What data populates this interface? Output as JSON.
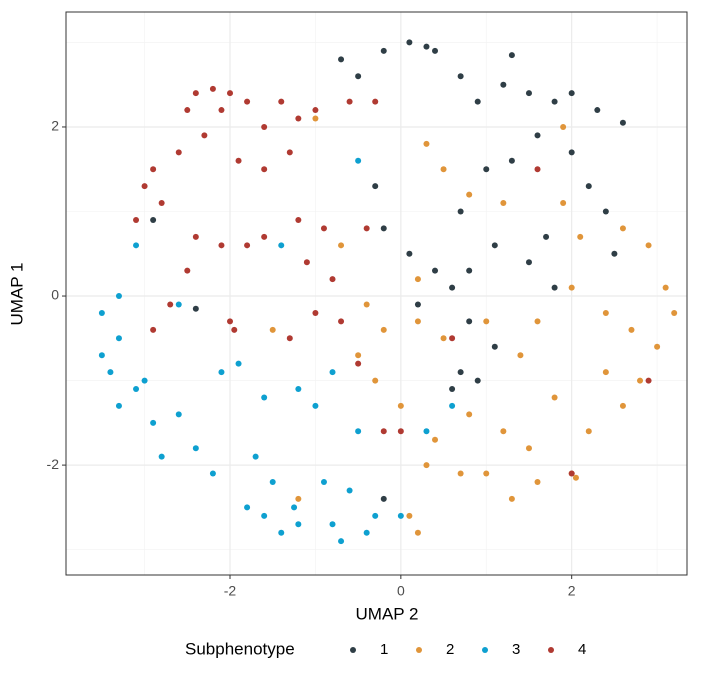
{
  "chart_data": {
    "type": "scatter",
    "xlabel": "UMAP 2",
    "ylabel": "UMAP 1",
    "legend_title": "Subphenotype",
    "legend": "bottom",
    "grid": true,
    "xlim": [
      -3.92,
      3.35
    ],
    "ylim": [
      -3.3,
      3.36
    ],
    "xticks": [
      -2,
      0,
      2
    ],
    "yticks": [
      -2,
      0,
      2
    ],
    "x_minor_ticks": [
      -3,
      -1,
      1,
      3
    ],
    "y_minor_ticks": [
      -3,
      -1,
      1,
      3
    ],
    "series": [
      {
        "name": "1",
        "color": "#2f3e46",
        "x": [
          0.1,
          0.3,
          0.4,
          -0.2,
          -0.5,
          -0.7,
          0.7,
          0.9,
          1.2,
          1.3,
          1.5,
          1.8,
          2.0,
          2.3,
          2.6,
          1.6,
          1.3,
          1.0,
          2.0,
          2.2,
          2.4,
          -0.3,
          -0.2,
          0.1,
          0.4,
          0.7,
          0.8,
          1.1,
          1.5,
          1.7,
          0.6,
          0.8,
          0.7,
          1.1,
          0.9,
          1.8,
          -2.4,
          -2.9,
          0.2,
          0.6,
          2.5,
          -0.2
        ],
        "values": [
          3.0,
          2.95,
          2.9,
          2.9,
          2.6,
          2.8,
          2.6,
          2.3,
          2.5,
          2.85,
          2.4,
          2.3,
          2.4,
          2.2,
          2.05,
          1.9,
          1.6,
          1.5,
          1.7,
          1.3,
          1.0,
          1.3,
          0.8,
          0.5,
          0.3,
          1.0,
          0.3,
          0.6,
          0.4,
          0.7,
          0.1,
          -0.3,
          -0.9,
          -0.6,
          -1.0,
          0.1,
          -0.15,
          0.9,
          -0.1,
          -1.1,
          0.5,
          -2.4
        ]
      },
      {
        "name": "2",
        "color": "#e0953a",
        "x": [
          0.5,
          0.8,
          1.2,
          1.9,
          2.1,
          2.6,
          2.9,
          3.1,
          3.2,
          2.7,
          2.4,
          2.0,
          1.6,
          1.4,
          1.0,
          0.5,
          0.2,
          -0.2,
          -0.5,
          -0.3,
          0.0,
          0.4,
          0.7,
          1.0,
          1.3,
          1.6,
          2.0,
          2.2,
          2.6,
          2.8,
          3.0,
          2.4,
          1.8,
          1.2,
          0.8,
          0.3,
          0.1,
          0.2,
          -0.4,
          0.2,
          1.9,
          -1.5,
          -1.2,
          2.05,
          -0.7,
          -1.0,
          0.3,
          1.5
        ],
        "values": [
          1.5,
          1.2,
          1.1,
          1.1,
          0.7,
          0.8,
          0.6,
          0.1,
          -0.2,
          -0.4,
          -0.2,
          0.1,
          -0.3,
          -0.7,
          -0.3,
          -0.5,
          -0.3,
          -0.4,
          -0.7,
          -1.0,
          -1.3,
          -1.7,
          -2.1,
          -2.1,
          -2.4,
          -2.2,
          -2.1,
          -1.6,
          -1.3,
          -1.0,
          -0.6,
          -0.9,
          -1.2,
          -1.6,
          -1.4,
          -2.0,
          -2.6,
          -2.8,
          -0.1,
          0.2,
          2.0,
          -0.4,
          -2.4,
          -2.15,
          0.6,
          2.1,
          1.8,
          -1.8
        ]
      },
      {
        "name": "3",
        "color": "#0ea0d0",
        "x": [
          -3.5,
          -3.4,
          -3.3,
          -3.3,
          -3.1,
          -3.3,
          -3.0,
          -2.9,
          -2.6,
          -2.8,
          -2.4,
          -2.2,
          -1.9,
          -2.1,
          -1.6,
          -1.7,
          -1.5,
          -1.8,
          -1.6,
          -1.4,
          -1.2,
          -1.25,
          -0.9,
          -0.6,
          -0.8,
          -0.4,
          -0.7,
          -0.3,
          -1.2,
          -1.0,
          -0.5,
          -0.8,
          -2.6,
          -0.5,
          -3.1,
          -1.4,
          0.0,
          0.6,
          0.3,
          -3.5
        ],
        "values": [
          -0.7,
          -0.9,
          -0.5,
          0.0,
          -1.1,
          -1.3,
          -1.0,
          -1.5,
          -1.4,
          -1.9,
          -1.8,
          -2.1,
          -0.8,
          -0.9,
          -1.2,
          -1.9,
          -2.2,
          -2.5,
          -2.6,
          -2.8,
          -2.7,
          -2.5,
          -2.2,
          -2.3,
          -2.7,
          -2.8,
          -2.9,
          -2.6,
          -1.1,
          -1.3,
          -1.6,
          -0.9,
          -0.1,
          1.6,
          0.6,
          0.6,
          -2.6,
          -1.3,
          -1.6,
          -0.2
        ]
      },
      {
        "name": "4",
        "color": "#b03a32",
        "x": [
          -2.4,
          -2.2,
          -2.0,
          -2.5,
          -2.3,
          -2.1,
          -1.8,
          -1.6,
          -1.4,
          -1.2,
          -1.0,
          -1.3,
          -1.6,
          -1.9,
          -2.6,
          -2.9,
          -3.0,
          -2.8,
          -3.1,
          -2.4,
          -2.1,
          -1.8,
          -1.6,
          -1.2,
          -0.9,
          -1.1,
          -0.8,
          -1.0,
          -0.7,
          -1.3,
          -2.0,
          -1.95,
          -2.7,
          -2.9,
          -2.5,
          -0.4,
          -0.5,
          -0.2,
          0.0,
          0.6,
          -0.3,
          -0.6,
          2.9,
          2.0,
          1.6
        ],
        "values": [
          2.4,
          2.45,
          2.4,
          2.2,
          1.9,
          2.2,
          2.3,
          2.0,
          2.3,
          2.1,
          2.2,
          1.7,
          1.5,
          1.6,
          1.7,
          1.5,
          1.3,
          1.1,
          0.9,
          0.7,
          0.6,
          0.6,
          0.7,
          0.9,
          0.8,
          0.4,
          0.2,
          -0.2,
          -0.3,
          -0.5,
          -0.3,
          -0.4,
          -0.1,
          -0.4,
          0.3,
          0.8,
          -0.8,
          -1.6,
          -1.6,
          -0.5,
          2.3,
          2.3,
          -1.0,
          -2.1,
          1.5
        ]
      }
    ]
  }
}
